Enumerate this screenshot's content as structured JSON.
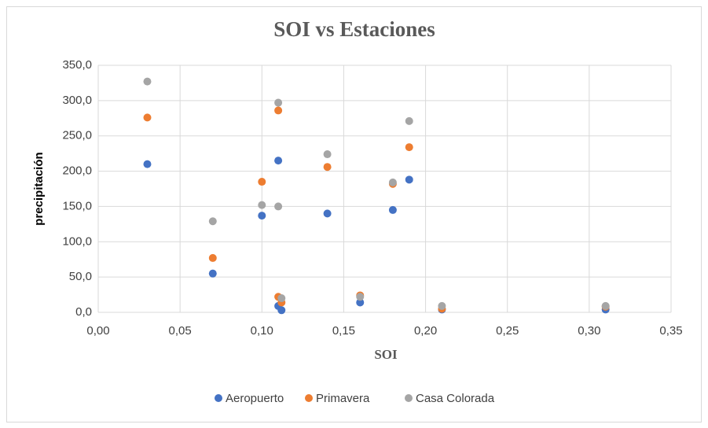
{
  "chart_data": {
    "type": "scatter",
    "title": "SOI vs Estaciones",
    "x_label": "SOI",
    "y_label": "precipitación",
    "x": [
      0.03,
      0.07,
      0.1,
      0.11,
      0.11,
      0.112,
      0.14,
      0.16,
      0.18,
      0.19,
      0.21,
      0.31
    ],
    "series": [
      {
        "name": "Aeropuerto",
        "color": "#4472c4",
        "values": [
          210,
          55,
          137,
          215,
          9,
          3,
          140,
          14,
          145,
          188,
          4,
          4
        ]
      },
      {
        "name": "Primavera",
        "color": "#ed7d31",
        "values": [
          276,
          77,
          185,
          286,
          22,
          14,
          206,
          24,
          182,
          234,
          5,
          8
        ]
      },
      {
        "name": "Casa Colorada",
        "color": "#a5a5a5",
        "values": [
          327,
          129,
          152,
          297,
          150,
          20,
          224,
          22,
          184,
          271,
          9,
          9
        ]
      }
    ],
    "xlim": [
      0,
      0.35
    ],
    "xticks": [
      {
        "value": 0,
        "label": "0,00"
      },
      {
        "value": 0.05,
        "label": "0,05"
      },
      {
        "value": 0.1,
        "label": "0,10"
      },
      {
        "value": 0.15,
        "label": "0,15"
      },
      {
        "value": 0.2,
        "label": "0,20"
      },
      {
        "value": 0.25,
        "label": "0,25"
      },
      {
        "value": 0.3,
        "label": "0,30"
      },
      {
        "value": 0.35,
        "label": "0,35"
      }
    ],
    "ylim": [
      0,
      350
    ],
    "yticks": [
      {
        "value": 0,
        "label": "0,0"
      },
      {
        "value": 50,
        "label": "50,0"
      },
      {
        "value": 100,
        "label": "100,0"
      },
      {
        "value": 150,
        "label": "150,0"
      },
      {
        "value": 200,
        "label": "200,0"
      },
      {
        "value": 250,
        "label": "250,0"
      },
      {
        "value": 300,
        "label": "300,0"
      },
      {
        "value": 350,
        "label": "350,0"
      }
    ],
    "grid": true,
    "legend": "bottom"
  }
}
